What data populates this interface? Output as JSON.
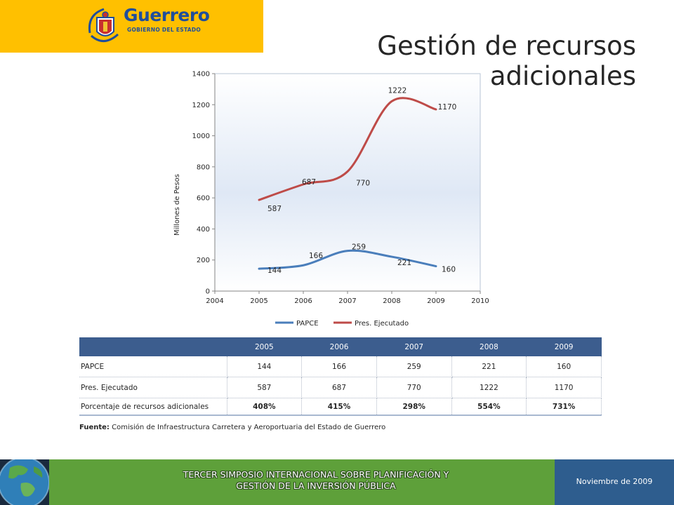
{
  "logo": {
    "name": "Guerrero",
    "subtitle": "GOBIERNO DEL ESTADO",
    "emblem": "state-coat-of-arms",
    "colors": {
      "background": "#ffc000",
      "text": "#1f4e9c"
    }
  },
  "slide_title": {
    "line1": "Gestión de recursos",
    "line2": "adicionales"
  },
  "chart_data": {
    "type": "line",
    "title": "",
    "xlabel": "",
    "ylabel": "Millones de Pesos",
    "xlim": [
      2004,
      2010
    ],
    "ylim": [
      0,
      1400
    ],
    "x_ticks": [
      "2004",
      "2005",
      "2006",
      "2007",
      "2008",
      "2009",
      "2010"
    ],
    "y_ticks": [
      "0",
      "200",
      "400",
      "600",
      "800",
      "1000",
      "1200",
      "1400"
    ],
    "grid": false,
    "legend": "bottom",
    "x": [
      2005,
      2006,
      2007,
      2008,
      2009
    ],
    "series": [
      {
        "name": "PAPCE",
        "values": [
          144,
          166,
          259,
          221,
          160
        ],
        "color": "#4a7ebb"
      },
      {
        "name": "Pres. Ejecutado",
        "values": [
          587,
          687,
          770,
          1222,
          1170
        ],
        "color": "#be4b48"
      }
    ]
  },
  "table": {
    "headers": [
      "",
      "2005",
      "2006",
      "2007",
      "2008",
      "2009"
    ],
    "rows": [
      {
        "label": "PAPCE",
        "values": [
          "144",
          "166",
          "259",
          "221",
          "160"
        ]
      },
      {
        "label": "Pres. Ejecutado",
        "values": [
          "587",
          "687",
          "770",
          "1222",
          "1170"
        ]
      },
      {
        "label": "Porcentaje de recursos adicionales",
        "values": [
          "408%",
          "415%",
          "298%",
          "554%",
          "731%"
        ]
      }
    ],
    "colors": {
      "header": "#3c5d8e"
    }
  },
  "source": {
    "label": "Fuente:",
    "text": "Comisión de Infraestructura Carretera y Aeroportuaria del Estado de Guerrero"
  },
  "footer": {
    "line1": "TERCER SIMPOSIO INTERNACIONAL SOBRE PLANIFICACIÓN Y",
    "line2": "GESTIÓN DE LA INVERSIÓN PÚBLICA",
    "date": "Noviembre de 2009",
    "icon": "globe-icon",
    "colors": {
      "green": "#5ea03a",
      "blue": "#2e5d8e"
    }
  }
}
